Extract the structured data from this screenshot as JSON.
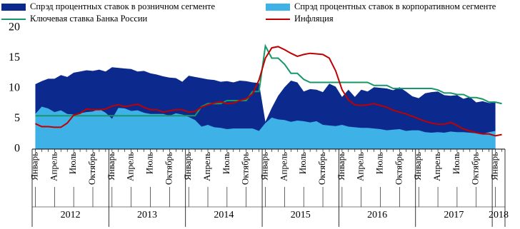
{
  "chart_data": {
    "type": "combo",
    "ylim": [
      0,
      20
    ],
    "yticks": [
      0,
      5,
      10,
      15,
      20
    ],
    "categories": [
      "Январь",
      null,
      null,
      "Апрель",
      null,
      null,
      "Июль",
      null,
      null,
      "Октябрь",
      null,
      null,
      "Январь",
      null,
      null,
      "Апрель",
      null,
      null,
      "Июль",
      null,
      null,
      "Октябрь",
      null,
      null,
      "Январь",
      null,
      null,
      "Апрель",
      null,
      null,
      "Июль",
      null,
      null,
      "Октябрь",
      null,
      null,
      "Январь",
      null,
      null,
      "Апрель",
      null,
      null,
      "Июль",
      null,
      null,
      "Октябрь",
      null,
      null,
      "Январь",
      null,
      null,
      "Апрель",
      null,
      null,
      "Июль",
      null,
      null,
      "Октябрь",
      null,
      null,
      "Январь",
      null,
      null,
      "Апрель",
      null,
      null,
      "Июль",
      null,
      null,
      "Октябрь",
      null,
      null,
      "Январь",
      null
    ],
    "year_labels": [
      "2012",
      "2013",
      "2014",
      "2015",
      "2016",
      "2017",
      "2018"
    ],
    "series": [
      {
        "name": "Спрэд процентных ставок в розничном сегменте",
        "kind": "area",
        "color": "#0c2a8e",
        "values": [
          10.7,
          11.2,
          11.6,
          11.6,
          12.2,
          11.9,
          12.6,
          12.8,
          13.0,
          12.9,
          13.1,
          12.8,
          13.5,
          13.4,
          13.3,
          13.2,
          12.8,
          12.9,
          12.5,
          12.3,
          12.0,
          11.8,
          11.7,
          11.1,
          12.1,
          11.9,
          11.7,
          11.5,
          11.4,
          11.1,
          11.2,
          11.0,
          11.3,
          11.2,
          11.0,
          10.9,
          4.5,
          6.8,
          8.8,
          10.2,
          11.3,
          11.0,
          9.5,
          9.9,
          9.8,
          9.4,
          10.8,
          10.3,
          8.6,
          9.8,
          8.6,
          9.8,
          9.5,
          10.2,
          10.1,
          10.0,
          9.7,
          10.2,
          9.5,
          8.7,
          8.4,
          9.2,
          9.4,
          9.5,
          8.9,
          8.8,
          8.9,
          8.3,
          8.6,
          7.7,
          7.9,
          7.6,
          7.7,
          null
        ]
      },
      {
        "name": "Спрэд процентных ставок в корпоративном сегменте",
        "kind": "area",
        "color": "#3eb1e6",
        "values": [
          5.8,
          7.0,
          6.7,
          6.1,
          6.4,
          5.8,
          5.7,
          5.9,
          6.1,
          6.2,
          6.6,
          6.0,
          5.0,
          6.8,
          6.7,
          6.3,
          6.4,
          6.0,
          5.8,
          5.8,
          5.8,
          5.5,
          5.9,
          5.7,
          5.3,
          4.8,
          3.7,
          4.0,
          3.6,
          3.5,
          3.3,
          3.4,
          3.4,
          3.4,
          3.4,
          3.0,
          4.3,
          5.2,
          4.9,
          4.8,
          4.5,
          4.7,
          4.6,
          4.4,
          4.6,
          4.0,
          3.9,
          3.8,
          4.0,
          3.7,
          3.6,
          3.5,
          3.5,
          3.4,
          3.3,
          3.1,
          3.2,
          3.3,
          3.0,
          3.1,
          3.1,
          2.8,
          2.7,
          2.8,
          2.7,
          2.9,
          2.8,
          2.8,
          2.7,
          2.6,
          2.5,
          2.8,
          3.0,
          null
        ]
      },
      {
        "name": "Ключевая ставка Банка России",
        "kind": "line",
        "color": "#17976a",
        "values": [
          5.5,
          5.5,
          5.5,
          5.5,
          5.5,
          5.5,
          5.5,
          5.5,
          5.5,
          5.5,
          5.5,
          5.5,
          5.5,
          5.5,
          5.5,
          5.5,
          5.5,
          5.5,
          5.5,
          5.5,
          5.5,
          5.5,
          5.5,
          5.5,
          5.5,
          5.5,
          7,
          7.5,
          7.5,
          7.5,
          8,
          8,
          8,
          8,
          9.5,
          9.5,
          17,
          15,
          15,
          14,
          12.5,
          12.5,
          11.5,
          11,
          11,
          11,
          11,
          11,
          11,
          11,
          11,
          11,
          11,
          10.5,
          10.5,
          10.5,
          10,
          10,
          10,
          10,
          10,
          10,
          10,
          9.75,
          9.25,
          9.25,
          9,
          9,
          8.5,
          8.5,
          8.25,
          7.75,
          7.75,
          7.5
        ]
      },
      {
        "name": "Инфляция",
        "kind": "line",
        "color": "#c00000",
        "values": [
          4.2,
          3.7,
          3.7,
          3.6,
          3.6,
          4.3,
          5.6,
          5.9,
          6.6,
          6.5,
          6.5,
          6.6,
          7.1,
          7.3,
          7.0,
          7.2,
          7.4,
          6.9,
          6.5,
          6.5,
          6.1,
          6.3,
          6.5,
          6.5,
          6.1,
          6.2,
          6.9,
          7.3,
          7.6,
          7.8,
          7.5,
          7.6,
          8.0,
          8.3,
          9.1,
          11.4,
          15.0,
          16.7,
          16.9,
          16.4,
          15.8,
          15.3,
          15.6,
          15.8,
          15.7,
          15.6,
          15.0,
          12.9,
          9.8,
          8.1,
          7.3,
          7.2,
          7.3,
          7.5,
          7.2,
          6.9,
          6.4,
          6.1,
          5.8,
          5.4,
          5.0,
          4.6,
          4.3,
          4.1,
          4.1,
          4.4,
          3.9,
          3.3,
          3.0,
          2.7,
          2.5,
          2.5,
          2.2,
          2.4
        ]
      }
    ]
  }
}
